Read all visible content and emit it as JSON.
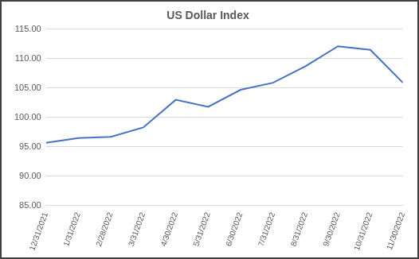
{
  "chart_data": {
    "type": "line",
    "title": "US Dollar Index",
    "categories": [
      "12/31/2021",
      "1/31/2022",
      "2/28/2022",
      "3/31/2022",
      "4/30/2022",
      "5/31/2022",
      "6/30/2022",
      "7/31/2022",
      "8/31/2022",
      "9/30/2022",
      "10/31/2022",
      "11/30/2022"
    ],
    "values": [
      95.7,
      96.5,
      96.7,
      98.3,
      103.0,
      101.8,
      104.7,
      105.9,
      108.7,
      112.1,
      111.5,
      105.9
    ],
    "color": "#4472c4",
    "ylim": [
      85,
      115
    ],
    "yticks": [
      {
        "value": 85,
        "label": "85.00"
      },
      {
        "value": 90,
        "label": "90.00"
      },
      {
        "value": 95,
        "label": "95.00"
      },
      {
        "value": 100,
        "label": "100.00"
      },
      {
        "value": 105,
        "label": "105.00"
      },
      {
        "value": 110,
        "label": "110.00"
      },
      {
        "value": 115,
        "label": "115.00"
      }
    ],
    "grid": true
  }
}
